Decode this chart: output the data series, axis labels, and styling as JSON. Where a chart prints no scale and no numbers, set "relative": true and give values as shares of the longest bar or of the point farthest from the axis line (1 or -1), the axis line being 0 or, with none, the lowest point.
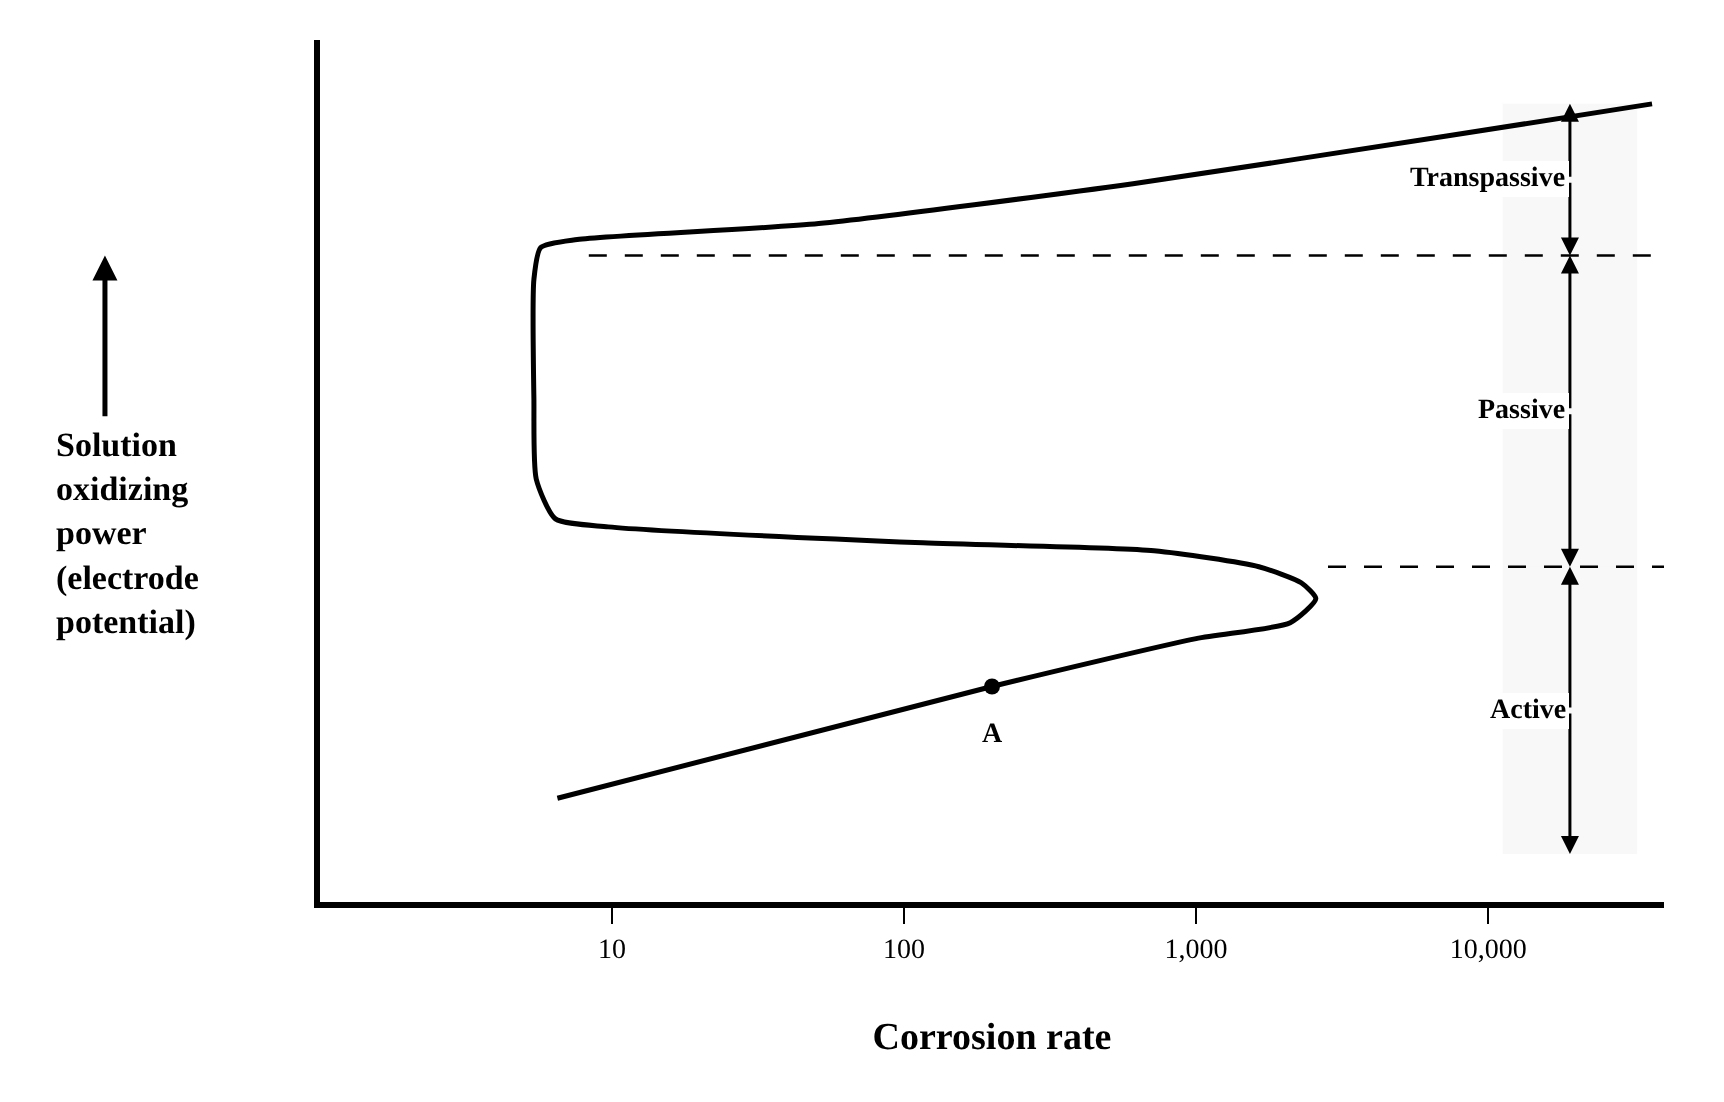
{
  "chart_data": {
    "type": "line",
    "relative": true,
    "log": "x",
    "xlabel": "Corrosion rate",
    "ylabel": "Solution oxidizing power (electrode potential)",
    "xlim": [
      1,
      40000
    ],
    "xticks": [
      10,
      100,
      {
        "value": 1000,
        "label": "1,000"
      },
      {
        "value": 10000,
        "label": "10,000"
      }
    ],
    "marker": "none",
    "line_style": "solid",
    "grid": false,
    "series": [
      {
        "color": "#000000",
        "x": [
          6.5,
          200,
          1000,
          2100,
          2570,
          2290,
          1640,
          718,
          116,
          9.7,
          6.4,
          5.5,
          5.4,
          5.4,
          5.7,
          7.6,
          51,
          608,
          7300,
          36400
        ],
        "values": [
          0.13,
          0.27,
          0.33,
          0.35,
          0.38,
          0.4,
          0.42,
          0.44,
          0.45,
          0.47,
          0.48,
          0.53,
          0.63,
          0.78,
          0.82,
          0.83,
          0.85,
          0.9,
          0.96,
          1
        ]
      },
      {
        "type": "scatter",
        "marker": "circle",
        "color": "#000000",
        "x": [
          200
        ],
        "values": [
          0.27
        ]
      }
    ],
    "ref_lines": [
      {
        "axis": "y",
        "value": 0.81,
        "line_style": "dashed"
      },
      {
        "axis": "y",
        "value": 0.42,
        "line_style": "dashed"
      }
    ],
    "bands": [
      {
        "axis": "y",
        "from": 0.81,
        "to": 1,
        "label": "Transpassive"
      },
      {
        "axis": "y",
        "from": 0.42,
        "to": 0.81,
        "label": "Passive"
      },
      {
        "axis": "y",
        "from": 0.06,
        "to": 0.42,
        "label": "Active"
      }
    ],
    "annotations": [
      {
        "text": "A",
        "x": 200,
        "y": 0.27
      }
    ]
  }
}
